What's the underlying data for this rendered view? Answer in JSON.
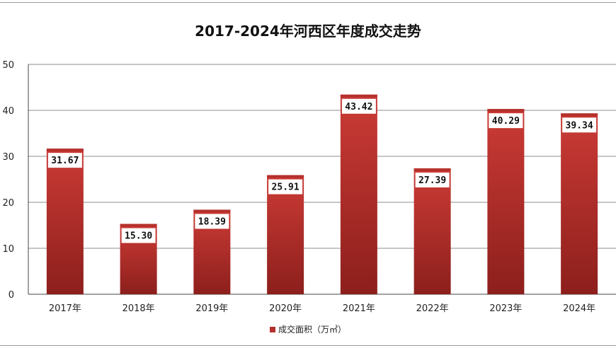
{
  "chart_data": {
    "type": "bar",
    "title": "2017-2024年河西区年度成交走势",
    "categories": [
      "2017年",
      "2018年",
      "2019年",
      "2020年",
      "2021年",
      "2022年",
      "2023年",
      "2024年"
    ],
    "series": [
      {
        "name": "成交面积（万㎡）",
        "values": [
          31.67,
          15.3,
          18.39,
          25.91,
          43.42,
          27.39,
          40.29,
          39.34
        ],
        "labels": [
          "31.67",
          "15.30",
          "18.39",
          "25.91",
          "43.42",
          "27.39",
          "40.29",
          "39.34"
        ]
      }
    ],
    "ylim": [
      0,
      50
    ],
    "yticks": [
      "0",
      "10",
      "20",
      "30",
      "40",
      "50"
    ],
    "grid": true,
    "legend_position": "bottom",
    "colors": {
      "bar_top": "#cc3b36",
      "bar_bottom": "#8c1f1c",
      "cap": "#b5312c"
    }
  }
}
